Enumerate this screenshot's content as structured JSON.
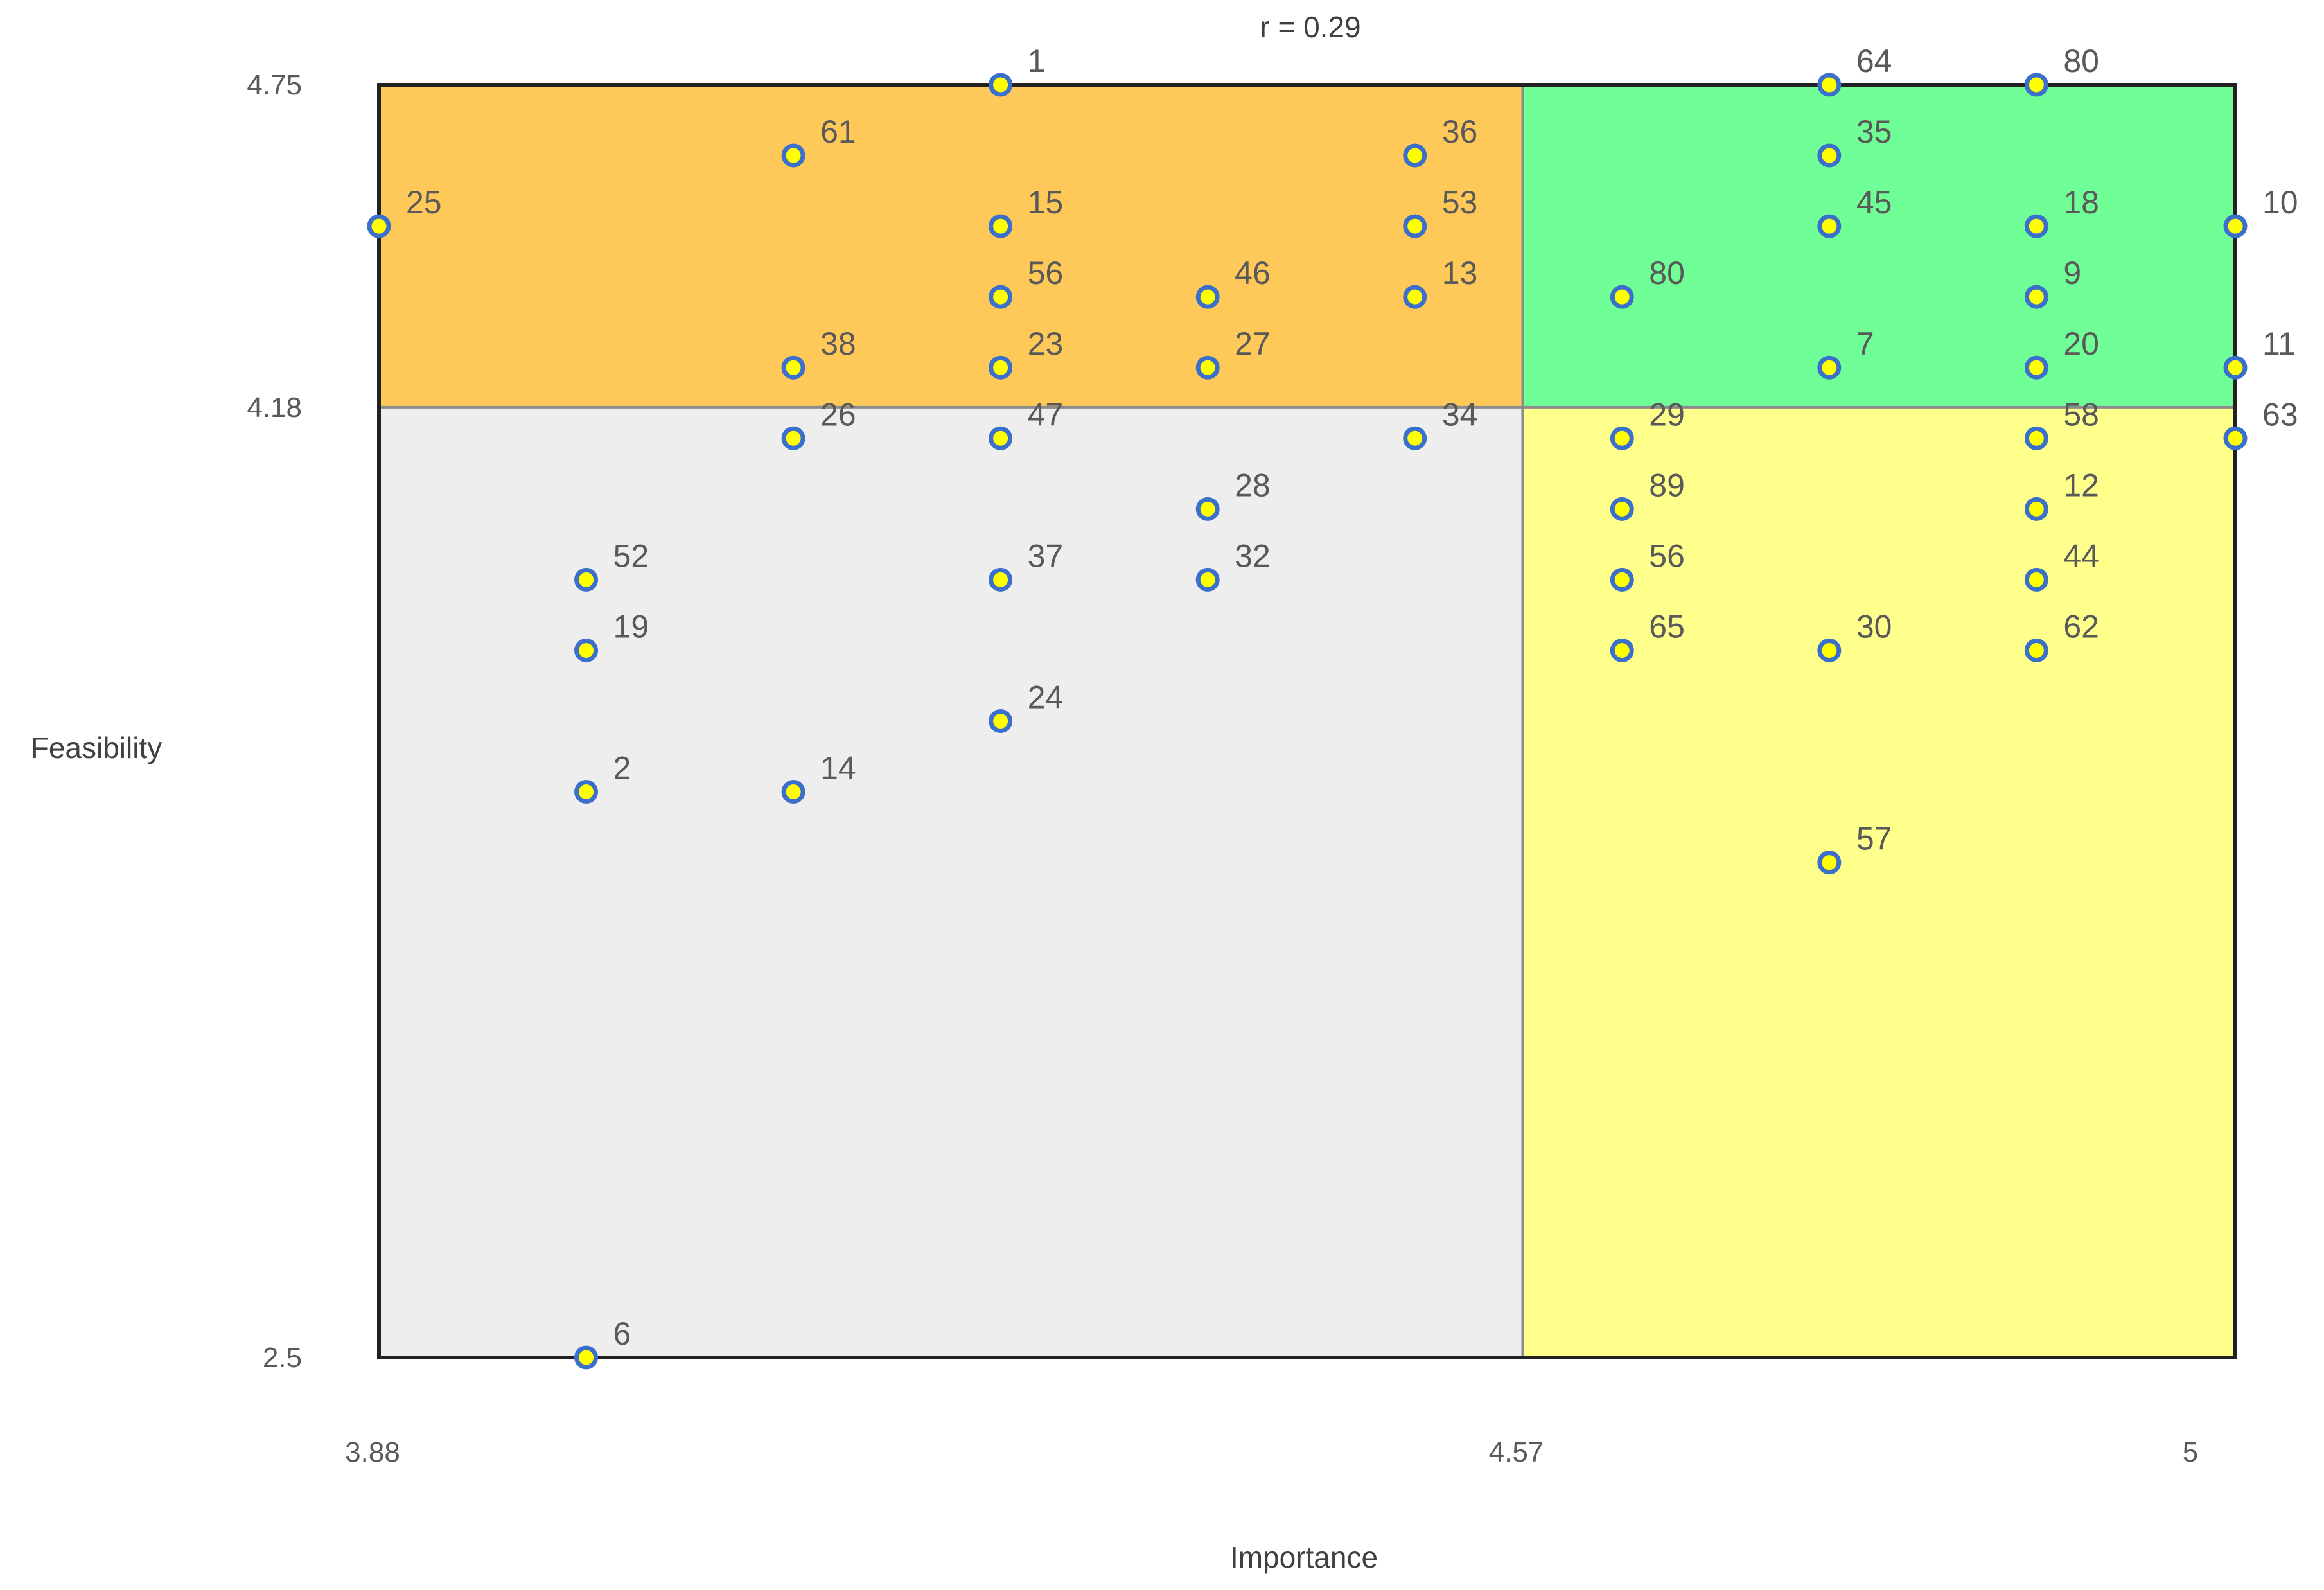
{
  "chart_data": {
    "type": "scatter",
    "title": "r = 0.29",
    "xlabel": "Importance",
    "ylabel": "Feasibility",
    "xlim": [
      3.88,
      5
    ],
    "ylim": [
      2.5,
      4.75
    ],
    "x_ticks": [
      "3.88",
      "4.57",
      "5"
    ],
    "y_ticks": [
      "4.75",
      "4.18",
      "2.5"
    ],
    "split": {
      "x": 4.57,
      "y": 4.18
    },
    "grid": false,
    "legend": "none",
    "colors": {
      "q_low_imp_high_feas": "#ffc95a",
      "q_high_imp_high_feas": "#70ff96",
      "q_low_imp_low_feas": "#eeeeee",
      "q_high_imp_low_feas": "#ffff8c",
      "point_fill": "#ffff00",
      "point_stroke": "#3b6fcc"
    },
    "points": [
      {
        "label": "1",
        "x": 4.255,
        "y": 4.75
      },
      {
        "label": "64",
        "x": 4.755,
        "y": 4.75
      },
      {
        "label": "80",
        "x": 4.88,
        "y": 4.75
      },
      {
        "label": "61",
        "x": 4.13,
        "y": 4.625
      },
      {
        "label": "36",
        "x": 4.505,
        "y": 4.625
      },
      {
        "label": "35",
        "x": 4.755,
        "y": 4.625
      },
      {
        "label": "25",
        "x": 3.88,
        "y": 4.5
      },
      {
        "label": "15",
        "x": 4.255,
        "y": 4.5
      },
      {
        "label": "53",
        "x": 4.505,
        "y": 4.5
      },
      {
        "label": "45",
        "x": 4.755,
        "y": 4.5
      },
      {
        "label": "18",
        "x": 4.88,
        "y": 4.5
      },
      {
        "label": "10",
        "x": 5,
        "y": 4.5
      },
      {
        "label": "56",
        "x": 4.255,
        "y": 4.375
      },
      {
        "label": "46",
        "x": 4.38,
        "y": 4.375
      },
      {
        "label": "13",
        "x": 4.505,
        "y": 4.375
      },
      {
        "label": "80",
        "x": 4.63,
        "y": 4.375
      },
      {
        "label": "9",
        "x": 4.88,
        "y": 4.375
      },
      {
        "label": "38",
        "x": 4.13,
        "y": 4.25
      },
      {
        "label": "23",
        "x": 4.255,
        "y": 4.25
      },
      {
        "label": "27",
        "x": 4.38,
        "y": 4.25
      },
      {
        "label": "7",
        "x": 4.755,
        "y": 4.25
      },
      {
        "label": "20",
        "x": 4.88,
        "y": 4.25
      },
      {
        "label": "11",
        "x": 5,
        "y": 4.25
      },
      {
        "label": "26",
        "x": 4.13,
        "y": 4.125
      },
      {
        "label": "47",
        "x": 4.255,
        "y": 4.125
      },
      {
        "label": "34",
        "x": 4.505,
        "y": 4.125
      },
      {
        "label": "29",
        "x": 4.63,
        "y": 4.125
      },
      {
        "label": "58",
        "x": 4.88,
        "y": 4.125
      },
      {
        "label": "63",
        "x": 5,
        "y": 4.125
      },
      {
        "label": "28",
        "x": 4.38,
        "y": 4.0
      },
      {
        "label": "89",
        "x": 4.63,
        "y": 4.0
      },
      {
        "label": "12",
        "x": 4.88,
        "y": 4.0
      },
      {
        "label": "52",
        "x": 4.005,
        "y": 3.875
      },
      {
        "label": "37",
        "x": 4.255,
        "y": 3.875
      },
      {
        "label": "32",
        "x": 4.38,
        "y": 3.875
      },
      {
        "label": "56",
        "x": 4.63,
        "y": 3.875
      },
      {
        "label": "44",
        "x": 4.88,
        "y": 3.875
      },
      {
        "label": "19",
        "x": 4.005,
        "y": 3.75
      },
      {
        "label": "65",
        "x": 4.63,
        "y": 3.75
      },
      {
        "label": "30",
        "x": 4.755,
        "y": 3.75
      },
      {
        "label": "62",
        "x": 4.88,
        "y": 3.75
      },
      {
        "label": "24",
        "x": 4.255,
        "y": 3.625
      },
      {
        "label": "2",
        "x": 4.005,
        "y": 3.5
      },
      {
        "label": "14",
        "x": 4.13,
        "y": 3.5
      },
      {
        "label": "57",
        "x": 4.755,
        "y": 3.375
      },
      {
        "label": "6",
        "x": 4.005,
        "y": 2.5
      }
    ]
  }
}
